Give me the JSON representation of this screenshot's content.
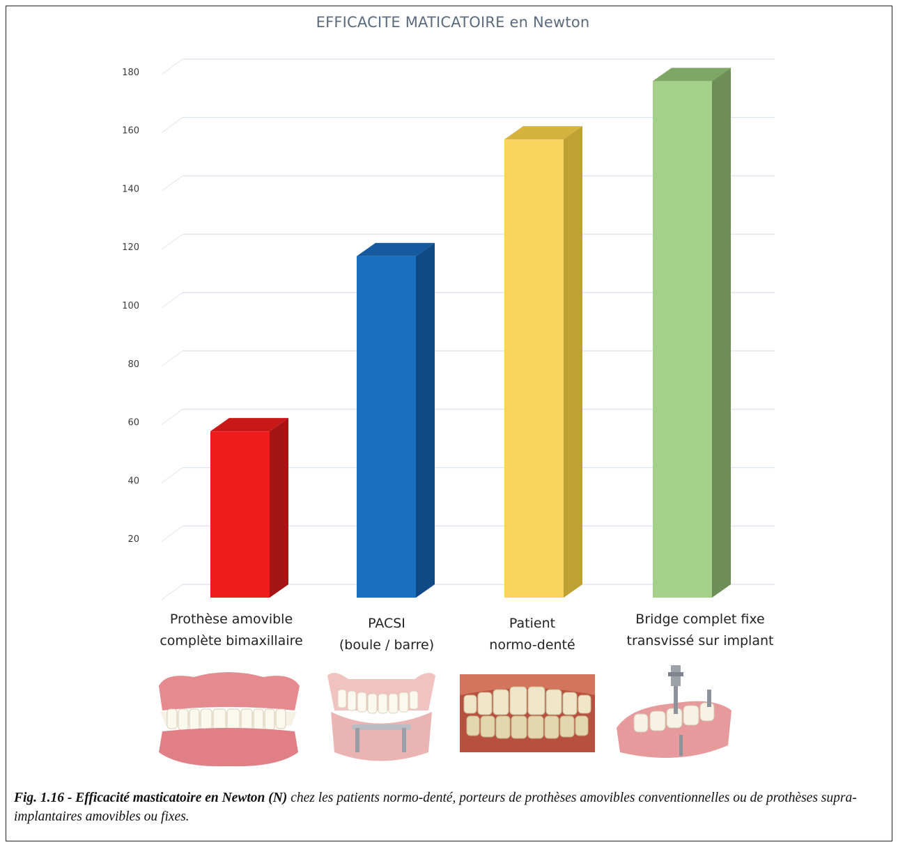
{
  "chart_data": {
    "type": "bar",
    "title": "EFFICACITE MATICATOIRE  en Newton",
    "categories": [
      [
        "Prothèse amovible",
        "complète bimaxillaire"
      ],
      [
        "PACSI",
        "(boule / barre)"
      ],
      [
        "Patient",
        "normo-denté"
      ],
      [
        "Bridge complet fixe",
        "transvissé sur implant"
      ]
    ],
    "values": [
      57,
      117,
      157,
      177
    ],
    "bar_colors": [
      "#ee1c1c",
      "#1b6fbf",
      "#fad45e",
      "#a5d08a"
    ],
    "bar_side_colors": [
      "#a61515",
      "#104a86",
      "#bfa033",
      "#6d8f55"
    ],
    "bar_top_colors": [
      "#c81818",
      "#155a9e",
      "#d6b23f",
      "#7ea766"
    ],
    "yticks": [
      20,
      40,
      60,
      80,
      100,
      120,
      140,
      160,
      180
    ],
    "ylim": [
      0,
      180
    ],
    "grid": true
  },
  "photos": [
    {
      "icon": "complete-denture-icon"
    },
    {
      "icon": "implant-overdenture-icon"
    },
    {
      "icon": "natural-teeth-icon"
    },
    {
      "icon": "implant-bridge-icon"
    }
  ],
  "caption": {
    "bold": "Fig. 1.16 - Efficacité masticatoire en Newton (N)",
    "text": " chez les patients normo-denté, porteurs de prothèses amovibles conventionnelles ou de prothèses supra-implantaires amovibles ou fixes."
  }
}
